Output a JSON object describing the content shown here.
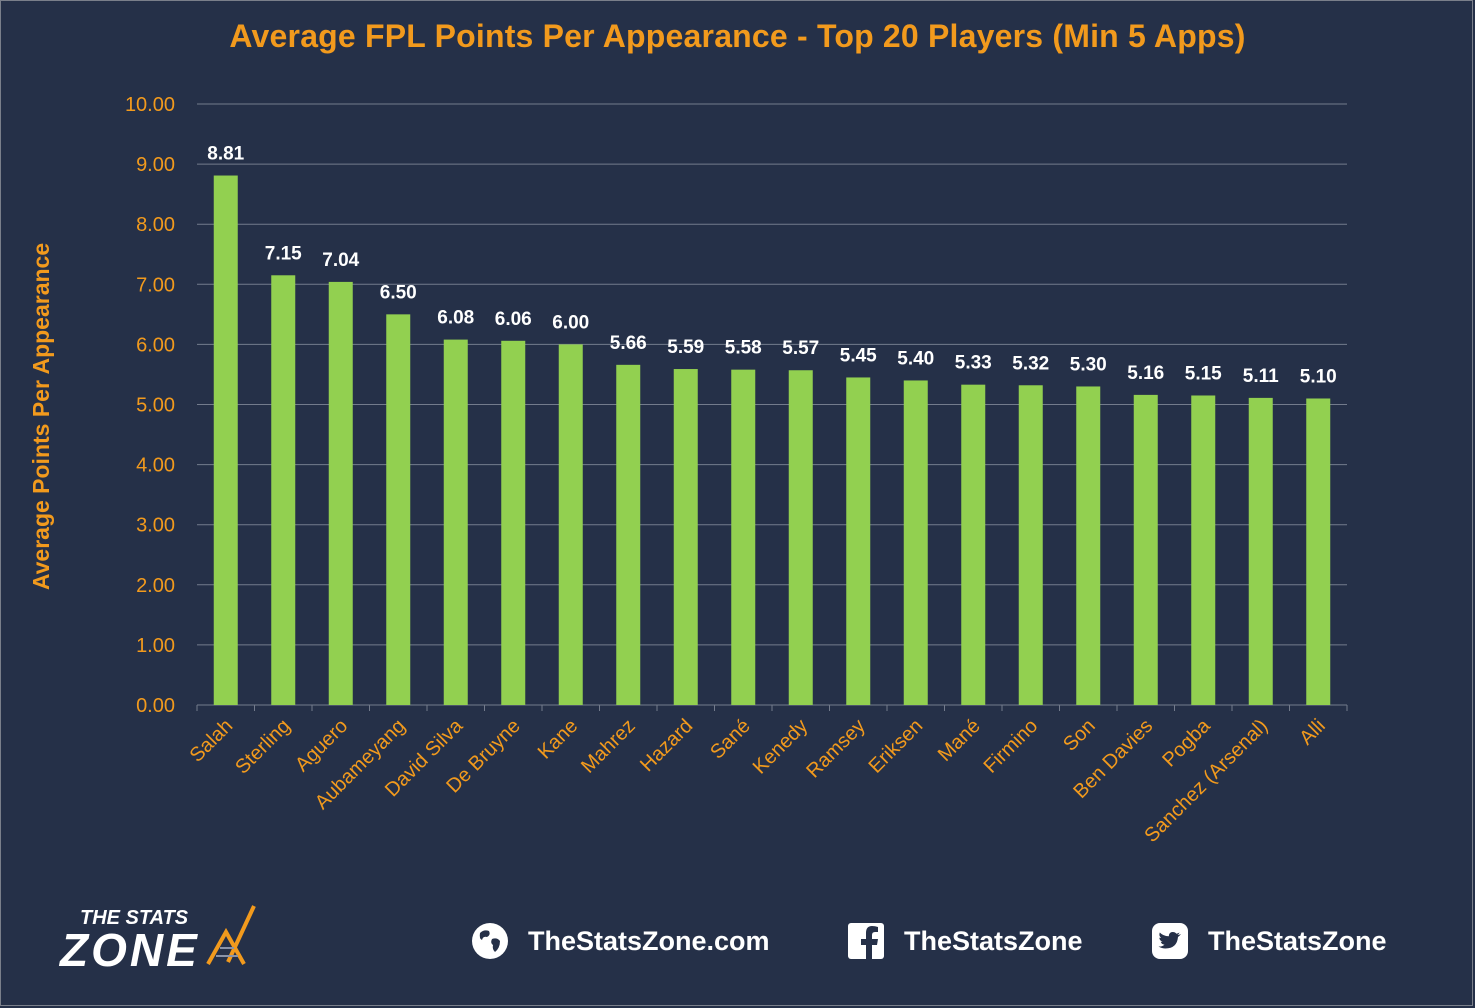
{
  "chart_data": {
    "type": "bar",
    "title": "Average FPL Points Per Appearance - Top 20 Players (Min 5 Apps)",
    "xlabel": "",
    "ylabel": "Average Points Per Appearance",
    "ylim": [
      0,
      10
    ],
    "yticks": [
      "0.00",
      "1.00",
      "2.00",
      "3.00",
      "4.00",
      "5.00",
      "6.00",
      "7.00",
      "8.00",
      "9.00",
      "10.00"
    ],
    "grid": true,
    "categories": [
      "Salah",
      "Sterling",
      "Aguero",
      "Aubameyang",
      "David Silva",
      "De Bruyne",
      "Kane",
      "Mahrez",
      "Hazard",
      "Sané",
      "Kenedy",
      "Ramsey",
      "Eriksen",
      "Mané",
      "Firmino",
      "Son",
      "Ben Davies",
      "Pogba",
      "Sanchez (Arsenal)",
      "Alli"
    ],
    "values": [
      8.81,
      7.15,
      7.04,
      6.5,
      6.08,
      6.06,
      6.0,
      5.66,
      5.59,
      5.58,
      5.57,
      5.45,
      5.4,
      5.33,
      5.32,
      5.3,
      5.16,
      5.15,
      5.11,
      5.1
    ],
    "data_labels": [
      "8.81",
      "7.15",
      "7.04",
      "6.50",
      "6.08",
      "6.06",
      "6.00",
      "5.66",
      "5.59",
      "5.58",
      "5.57",
      "5.45",
      "5.40",
      "5.33",
      "5.32",
      "5.30",
      "5.16",
      "5.15",
      "5.11",
      "5.10"
    ]
  },
  "colors": {
    "background": "#253048",
    "bar": "#92d050",
    "accent": "#f29a1d",
    "grid": "#737b8c",
    "text": "#ffffff"
  },
  "footer": {
    "logo_top": "THE STATS",
    "logo_bottom": "ZONE",
    "website": "TheStatsZone.com",
    "facebook": "TheStatsZone",
    "twitter": "TheStatsZone",
    "icons": [
      "globe-icon",
      "facebook-icon",
      "twitter-icon"
    ]
  }
}
